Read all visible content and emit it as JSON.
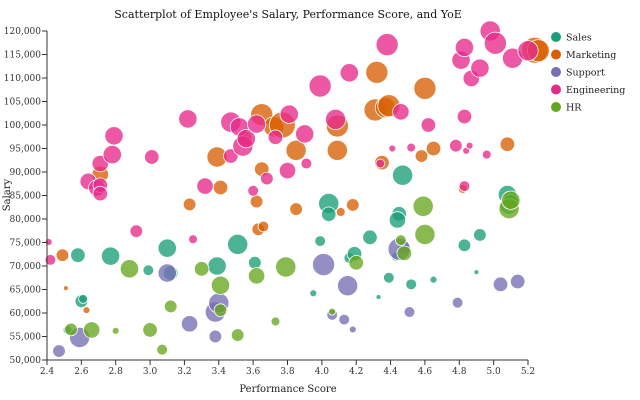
{
  "chart_data": {
    "type": "scatter",
    "title": "Scatterplot of Employee's Salary, Performance Score, and YoE",
    "xlabel": "Performance Score",
    "ylabel": "Salary",
    "xlim": [
      2.4,
      5.2
    ],
    "ylim": [
      50000,
      120000
    ],
    "x_ticks": [
      "2.4",
      "2.6",
      "2.8",
      "3.0",
      "3.2",
      "3.4",
      "3.6",
      "3.8",
      "4.0",
      "4.2",
      "4.4",
      "4.6",
      "4.8",
      "5.0",
      "5.2"
    ],
    "y_ticks": [
      "50,000",
      "55,000",
      "60,000",
      "65,000",
      "70,000",
      "75,000",
      "80,000",
      "85,000",
      "90,000",
      "95,000",
      "100,000",
      "105,000",
      "110,000",
      "115,000",
      "120,000"
    ],
    "size_variable": "YoE",
    "legend_position": "top-right",
    "series": [
      {
        "name": "Sales",
        "color": "#1b9e77",
        "points": [
          [
            2.52,
            56400,
            3
          ],
          [
            2.58,
            72300,
            6
          ],
          [
            2.6,
            62500,
            5
          ],
          [
            2.61,
            63000,
            3
          ],
          [
            2.77,
            72100,
            8
          ],
          [
            2.99,
            69100,
            4
          ],
          [
            3.1,
            73800,
            8
          ],
          [
            3.12,
            68500,
            6
          ],
          [
            3.39,
            70000,
            8
          ],
          [
            3.51,
            74600,
            9
          ],
          [
            3.61,
            70700,
            5
          ],
          [
            3.95,
            64200,
            2
          ],
          [
            3.99,
            75300,
            4
          ],
          [
            4.04,
            83300,
            9
          ],
          [
            4.04,
            81000,
            6
          ],
          [
            4.16,
            71700,
            4
          ],
          [
            4.19,
            72600,
            6
          ],
          [
            4.28,
            76100,
            6
          ],
          [
            4.33,
            63400,
            1
          ],
          [
            4.39,
            67500,
            4
          ],
          [
            4.43,
            72000,
            3
          ],
          [
            4.45,
            81100,
            6
          ],
          [
            4.44,
            79800,
            7
          ],
          [
            4.47,
            89300,
            9
          ],
          [
            4.52,
            66100,
            4
          ],
          [
            4.48,
            73900,
            5
          ],
          [
            4.65,
            67100,
            2
          ],
          [
            4.83,
            74400,
            5
          ],
          [
            4.9,
            68700,
            1
          ],
          [
            4.92,
            76600,
            5
          ],
          [
            5.08,
            85200,
            8
          ],
          [
            5.09,
            83000,
            8
          ],
          [
            5.1,
            83500,
            7
          ]
        ]
      },
      {
        "name": "Marketing",
        "color": "#d95f02",
        "points": [
          [
            2.49,
            72300,
            5
          ],
          [
            2.51,
            65300,
            1
          ],
          [
            2.63,
            60600,
            2
          ],
          [
            2.71,
            89500,
            7
          ],
          [
            3.23,
            83100,
            5
          ],
          [
            3.39,
            93200,
            9
          ],
          [
            3.41,
            86700,
            6
          ],
          [
            3.55,
            97200,
            6
          ],
          [
            3.62,
            83700,
            5
          ],
          [
            3.63,
            77800,
            5
          ],
          [
            3.65,
            102200,
            10
          ],
          [
            3.65,
            90600,
            6
          ],
          [
            3.66,
            78400,
            4
          ],
          [
            3.72,
            99600,
            9
          ],
          [
            3.77,
            100000,
            12
          ],
          [
            3.85,
            94600,
            9
          ],
          [
            3.85,
            82100,
            5
          ],
          [
            4.09,
            99800,
            10
          ],
          [
            4.09,
            94600,
            9
          ],
          [
            4.11,
            81500,
            3
          ],
          [
            4.18,
            83000,
            5
          ],
          [
            4.31,
            103200,
            10
          ],
          [
            4.32,
            111200,
            10
          ],
          [
            4.35,
            92000,
            6
          ],
          [
            4.37,
            103700,
            9
          ],
          [
            4.39,
            104100,
            10
          ],
          [
            4.58,
            93400,
            5
          ],
          [
            4.6,
            107800,
            10
          ],
          [
            4.65,
            95000,
            6
          ],
          [
            4.82,
            86400,
            3
          ],
          [
            5.08,
            95900,
            6
          ],
          [
            5.24,
            115900,
            12
          ],
          [
            5.26,
            115800,
            10
          ]
        ]
      },
      {
        "name": "Support",
        "color": "#7570b3",
        "points": [
          [
            2.47,
            51900,
            5
          ],
          [
            2.59,
            54800,
            9
          ],
          [
            3.1,
            68500,
            8
          ],
          [
            3.23,
            57700,
            7
          ],
          [
            3.38,
            55000,
            5
          ],
          [
            3.38,
            60200,
            9
          ],
          [
            3.4,
            62100,
            9
          ],
          [
            4.01,
            70300,
            10
          ],
          [
            4.06,
            59600,
            4
          ],
          [
            4.13,
            58600,
            4
          ],
          [
            4.15,
            65800,
            9
          ],
          [
            4.18,
            56500,
            2
          ],
          [
            4.45,
            73600,
            10
          ],
          [
            4.51,
            60200,
            4
          ],
          [
            4.79,
            62200,
            4
          ],
          [
            5.04,
            66100,
            6
          ],
          [
            5.14,
            66700,
            6
          ]
        ]
      },
      {
        "name": "Engineering",
        "color": "#e7298a",
        "points": [
          [
            2.41,
            75100,
            2
          ],
          [
            2.42,
            71300,
            4
          ],
          [
            2.64,
            88000,
            7
          ],
          [
            2.69,
            86600,
            7
          ],
          [
            2.71,
            87200,
            6
          ],
          [
            2.71,
            91800,
            7
          ],
          [
            2.71,
            85400,
            6
          ],
          [
            2.78,
            93700,
            8
          ],
          [
            2.79,
            97700,
            8
          ],
          [
            2.92,
            77400,
            5
          ],
          [
            3.01,
            93200,
            6
          ],
          [
            3.22,
            101300,
            8
          ],
          [
            3.25,
            75700,
            3
          ],
          [
            3.32,
            87000,
            7
          ],
          [
            3.47,
            93400,
            6
          ],
          [
            3.47,
            100600,
            9
          ],
          [
            3.52,
            99600,
            8
          ],
          [
            3.54,
            95500,
            9
          ],
          [
            3.56,
            97100,
            8
          ],
          [
            3.6,
            86000,
            4
          ],
          [
            3.62,
            100200,
            8
          ],
          [
            3.68,
            88600,
            5
          ],
          [
            3.73,
            97400,
            6
          ],
          [
            3.8,
            90300,
            7
          ],
          [
            3.81,
            102300,
            8
          ],
          [
            3.9,
            98100,
            8
          ],
          [
            3.91,
            91800,
            4
          ],
          [
            3.99,
            108300,
            10
          ],
          [
            4.08,
            101200,
            9
          ],
          [
            4.16,
            111100,
            8
          ],
          [
            4.34,
            91800,
            3
          ],
          [
            4.38,
            117100,
            10
          ],
          [
            4.41,
            95000,
            2
          ],
          [
            4.46,
            102800,
            7
          ],
          [
            4.52,
            95200,
            3
          ],
          [
            4.62,
            100000,
            6
          ],
          [
            4.78,
            95600,
            5
          ],
          [
            4.81,
            113800,
            8
          ],
          [
            4.83,
            116500,
            8
          ],
          [
            4.83,
            87000,
            4
          ],
          [
            4.83,
            101800,
            6
          ],
          [
            4.84,
            94500,
            2
          ],
          [
            4.86,
            95600,
            2
          ],
          [
            4.87,
            109900,
            7
          ],
          [
            4.92,
            112100,
            8
          ],
          [
            4.96,
            93700,
            3
          ],
          [
            4.98,
            120000,
            9
          ],
          [
            5.01,
            117400,
            10
          ],
          [
            5.11,
            114200,
            9
          ],
          [
            5.2,
            115800,
            9
          ]
        ]
      },
      {
        "name": "HR",
        "color": "#66a61e",
        "points": [
          [
            2.54,
            56500,
            5
          ],
          [
            2.66,
            56400,
            7
          ],
          [
            2.8,
            56200,
            2
          ],
          [
            2.88,
            69400,
            8
          ],
          [
            3.0,
            56400,
            6
          ],
          [
            3.07,
            52200,
            4
          ],
          [
            3.12,
            61400,
            5
          ],
          [
            3.3,
            69400,
            6
          ],
          [
            3.41,
            60600,
            5
          ],
          [
            3.41,
            65900,
            8
          ],
          [
            3.51,
            55300,
            5
          ],
          [
            3.62,
            67900,
            7
          ],
          [
            3.73,
            58200,
            3
          ],
          [
            3.79,
            69800,
            9
          ],
          [
            4.06,
            60300,
            2
          ],
          [
            4.2,
            70700,
            6
          ],
          [
            4.46,
            75500,
            4
          ],
          [
            4.48,
            72700,
            6
          ],
          [
            4.59,
            82700,
            9
          ],
          [
            4.6,
            76700,
            9
          ],
          [
            5.09,
            82200,
            9
          ],
          [
            5.1,
            84000,
            8
          ]
        ]
      }
    ]
  }
}
